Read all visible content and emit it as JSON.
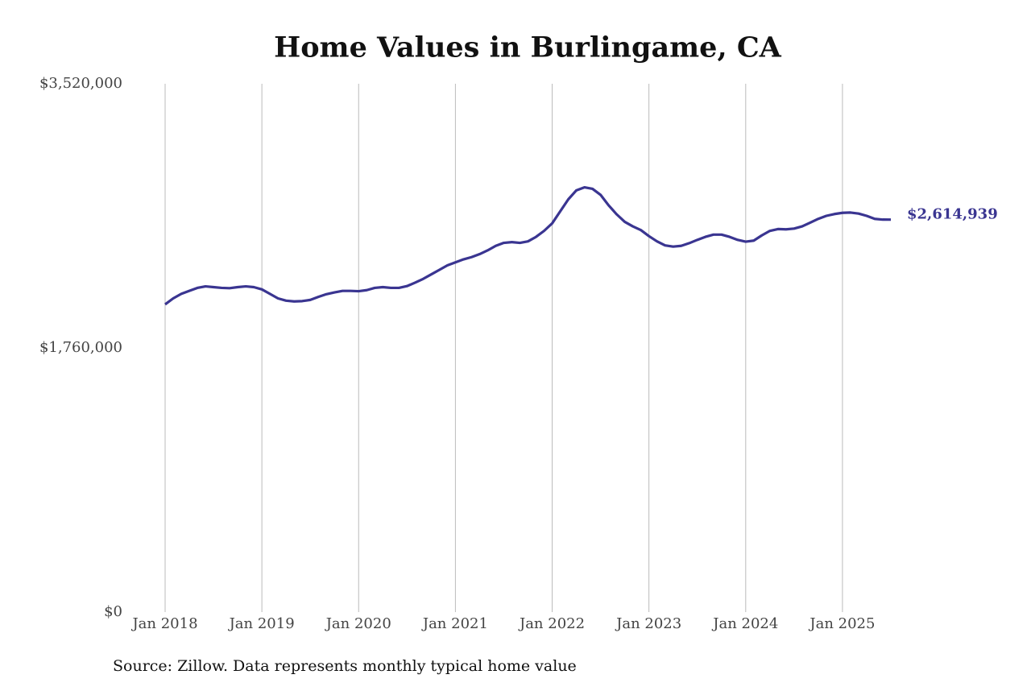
{
  "chart_data": {
    "type": "line",
    "title": "Home Values in Burlingame, CA",
    "source": "Source: Zillow. Data represents monthly typical home value",
    "x": [
      "2018-01",
      "2018-02",
      "2018-03",
      "2018-04",
      "2018-05",
      "2018-06",
      "2018-07",
      "2018-08",
      "2018-09",
      "2018-10",
      "2018-11",
      "2018-12",
      "2019-01",
      "2019-02",
      "2019-03",
      "2019-04",
      "2019-05",
      "2019-06",
      "2019-07",
      "2019-08",
      "2019-09",
      "2019-10",
      "2019-11",
      "2019-12",
      "2020-01",
      "2020-02",
      "2020-03",
      "2020-04",
      "2020-05",
      "2020-06",
      "2020-07",
      "2020-08",
      "2020-09",
      "2020-10",
      "2020-11",
      "2020-12",
      "2021-01",
      "2021-02",
      "2021-03",
      "2021-04",
      "2021-05",
      "2021-06",
      "2021-07",
      "2021-08",
      "2021-09",
      "2021-10",
      "2021-11",
      "2021-12",
      "2022-01",
      "2022-02",
      "2022-03",
      "2022-04",
      "2022-05",
      "2022-06",
      "2022-07",
      "2022-08",
      "2022-09",
      "2022-10",
      "2022-11",
      "2022-12",
      "2023-01",
      "2023-02",
      "2023-03",
      "2023-04",
      "2023-05",
      "2023-06",
      "2023-07",
      "2023-08",
      "2023-09",
      "2023-10",
      "2023-11",
      "2023-12",
      "2024-01",
      "2024-02",
      "2024-03",
      "2024-04",
      "2024-05",
      "2024-06",
      "2024-07",
      "2024-08",
      "2024-09",
      "2024-10",
      "2024-11",
      "2024-12",
      "2025-01",
      "2025-02",
      "2025-03",
      "2025-04",
      "2025-05",
      "2025-06",
      "2025-07"
    ],
    "series": [
      {
        "color": "#3a3591",
        "values": [
          2050000,
          2090000,
          2120000,
          2140000,
          2160000,
          2170000,
          2165000,
          2160000,
          2158000,
          2165000,
          2170000,
          2165000,
          2150000,
          2120000,
          2090000,
          2075000,
          2070000,
          2072000,
          2080000,
          2100000,
          2118000,
          2130000,
          2140000,
          2140000,
          2138000,
          2145000,
          2160000,
          2165000,
          2160000,
          2160000,
          2172000,
          2195000,
          2220000,
          2250000,
          2280000,
          2310000,
          2330000,
          2350000,
          2365000,
          2385000,
          2410000,
          2440000,
          2460000,
          2465000,
          2460000,
          2470000,
          2500000,
          2540000,
          2590000,
          2670000,
          2750000,
          2810000,
          2830000,
          2820000,
          2780000,
          2710000,
          2650000,
          2600000,
          2570000,
          2545000,
          2505000,
          2470000,
          2443000,
          2435000,
          2440000,
          2458000,
          2480000,
          2500000,
          2515000,
          2515000,
          2500000,
          2480000,
          2468000,
          2475000,
          2510000,
          2540000,
          2552000,
          2550000,
          2555000,
          2570000,
          2595000,
          2620000,
          2640000,
          2652000,
          2660000,
          2662000,
          2655000,
          2640000,
          2620000,
          2615000,
          2614939
        ],
        "value_labels": [
          null,
          null,
          null,
          null,
          null,
          null,
          null,
          null,
          null,
          null,
          null,
          null,
          null,
          null,
          null,
          null,
          null,
          null,
          null,
          null,
          null,
          null,
          null,
          null,
          null,
          null,
          null,
          null,
          null,
          null,
          null,
          null,
          null,
          null,
          null,
          null,
          null,
          null,
          null,
          null,
          null,
          null,
          null,
          null,
          null,
          null,
          null,
          null,
          null,
          null,
          null,
          null,
          null,
          null,
          null,
          null,
          null,
          null,
          null,
          null,
          null,
          null,
          null,
          null,
          null,
          null,
          null,
          null,
          null,
          null,
          null,
          null,
          null,
          null,
          null,
          null,
          null,
          null,
          null,
          null,
          null,
          null,
          null,
          null,
          null,
          null,
          null,
          null,
          null,
          null,
          "$2,614,939"
        ]
      }
    ],
    "xlim": [
      "2018-01",
      "2025-07"
    ],
    "xticks": [
      {
        "value": "2018-01",
        "label": "Jan 2018"
      },
      {
        "value": "2019-01",
        "label": "Jan 2019"
      },
      {
        "value": "2020-01",
        "label": "Jan 2020"
      },
      {
        "value": "2021-01",
        "label": "Jan 2021"
      },
      {
        "value": "2022-01",
        "label": "Jan 2022"
      },
      {
        "value": "2023-01",
        "label": "Jan 2023"
      },
      {
        "value": "2024-01",
        "label": "Jan 2024"
      },
      {
        "value": "2025-01",
        "label": "Jan 2025"
      }
    ],
    "ylim": [
      0,
      3520000
    ],
    "yticks": [
      {
        "value": 0,
        "label": "$0"
      },
      {
        "value": 1760000,
        "label": "$1,760,000"
      },
      {
        "value": 3520000,
        "label": "$3,520,000"
      }
    ],
    "grid": "x"
  }
}
